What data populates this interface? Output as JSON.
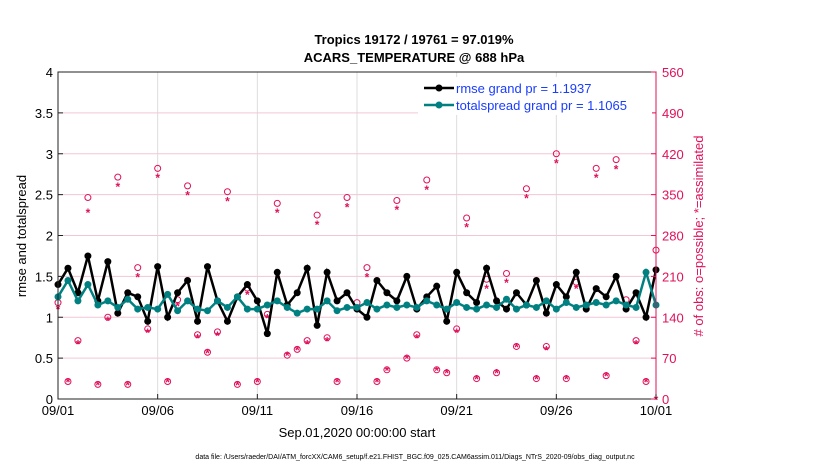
{
  "chart_data": {
    "type": "line",
    "title": [
      "Tropics 19172 / 19761 = 97.019%",
      "ACARS_TEMPERATURE @ 688 hPa"
    ],
    "xlabel": "Sep.01,2020 00:00:00 start",
    "ylabel": "rmse and totalspread",
    "y2label": "# of obs: o=possible; *=assimilated",
    "xlim_days": [
      0,
      30
    ],
    "ylim": [
      0,
      4
    ],
    "y2lim": [
      0,
      560
    ],
    "xticks": [
      {
        "day": 0,
        "label": "09/01"
      },
      {
        "day": 5,
        "label": "09/06"
      },
      {
        "day": 10,
        "label": "09/11"
      },
      {
        "day": 15,
        "label": "09/16"
      },
      {
        "day": 20,
        "label": "09/21"
      },
      {
        "day": 25,
        "label": "09/26"
      },
      {
        "day": 30,
        "label": "10/01"
      }
    ],
    "yticks": [
      "0",
      "0.5",
      "1",
      "1.5",
      "2",
      "2.5",
      "3",
      "3.5",
      "4"
    ],
    "y2ticks": [
      "0",
      "70",
      "140",
      "210",
      "280",
      "350",
      "420",
      "490",
      "560"
    ],
    "legend": {
      "placement": "top-right",
      "entries": [
        "rmse grand pr = 1.1937",
        "totalspread grand pr = 1.1065"
      ]
    },
    "colors": {
      "rmse": "#000000",
      "spread": "#008080",
      "obs": "#e0105a",
      "legend_text": "#1a3cff"
    },
    "x_step_days": 0.5,
    "series": [
      {
        "name": "rmse",
        "values": [
          1.4,
          1.6,
          1.3,
          1.75,
          1.2,
          1.68,
          1.05,
          1.3,
          1.25,
          0.95,
          1.62,
          1.0,
          1.3,
          1.45,
          0.95,
          1.62,
          1.2,
          0.95,
          1.25,
          1.4,
          1.2,
          0.8,
          1.55,
          1.15,
          1.3,
          1.6,
          0.9,
          1.55,
          1.2,
          1.3,
          1.1,
          1.0,
          1.45,
          1.3,
          1.2,
          1.5,
          1.1,
          1.25,
          1.38,
          0.95,
          1.55,
          1.3,
          1.18,
          1.6,
          1.2,
          1.1,
          1.3,
          1.15,
          1.45,
          1.05,
          1.4,
          1.25,
          1.55,
          1.1,
          1.35,
          1.25,
          1.5,
          1.1,
          1.3,
          1.0,
          1.58
        ]
      },
      {
        "name": "totalspread",
        "values": [
          1.25,
          1.45,
          1.2,
          1.4,
          1.15,
          1.2,
          1.12,
          1.22,
          1.1,
          1.12,
          1.1,
          1.28,
          1.08,
          1.2,
          1.1,
          1.08,
          1.2,
          1.12,
          1.25,
          1.1,
          1.1,
          1.15,
          1.2,
          1.12,
          1.05,
          1.1,
          1.1,
          1.2,
          1.08,
          1.12,
          1.12,
          1.18,
          1.1,
          1.15,
          1.12,
          1.15,
          1.12,
          1.2,
          1.15,
          1.1,
          1.18,
          1.12,
          1.1,
          1.15,
          1.12,
          1.22,
          1.1,
          1.15,
          1.12,
          1.2,
          1.1,
          1.18,
          1.12,
          1.15,
          1.18,
          1.15,
          1.2,
          1.15,
          1.12,
          1.55,
          1.15
        ]
      },
      {
        "name": "obs_possible",
        "values": [
          165,
          30,
          100,
          345,
          25,
          140,
          380,
          25,
          225,
          120,
          395,
          30,
          170,
          365,
          110,
          80,
          115,
          355,
          25,
          190,
          30,
          145,
          335,
          75,
          85,
          100,
          315,
          105,
          30,
          345,
          165,
          225,
          30,
          50,
          340,
          70,
          110,
          375,
          50,
          45,
          120,
          310,
          35,
          205,
          45,
          215,
          90,
          360,
          35,
          90,
          420,
          35,
          200,
          160,
          395,
          40,
          410,
          170,
          100,
          30,
          255
        ]
      },
      {
        "name": "obs_assimilated",
        "values": [
          155,
          30,
          95,
          320,
          25,
          135,
          365,
          25,
          210,
          115,
          380,
          30,
          160,
          350,
          105,
          80,
          110,
          340,
          25,
          180,
          30,
          140,
          320,
          75,
          85,
          95,
          300,
          100,
          30,
          330,
          155,
          210,
          30,
          50,
          325,
          70,
          105,
          360,
          50,
          45,
          115,
          295,
          35,
          190,
          45,
          200,
          90,
          345,
          35,
          85,
          405,
          35,
          190,
          150,
          380,
          40,
          395,
          160,
          95,
          30,
          0
        ]
      }
    ]
  },
  "footer": "data file: /Users/raeder/DAI/ATM_forcXX/CAM6_setup/f.e21.FHIST_BGC.f09_025.CAM6assim.011/Diags_NTrS_2020-09/obs_diag_output.nc"
}
